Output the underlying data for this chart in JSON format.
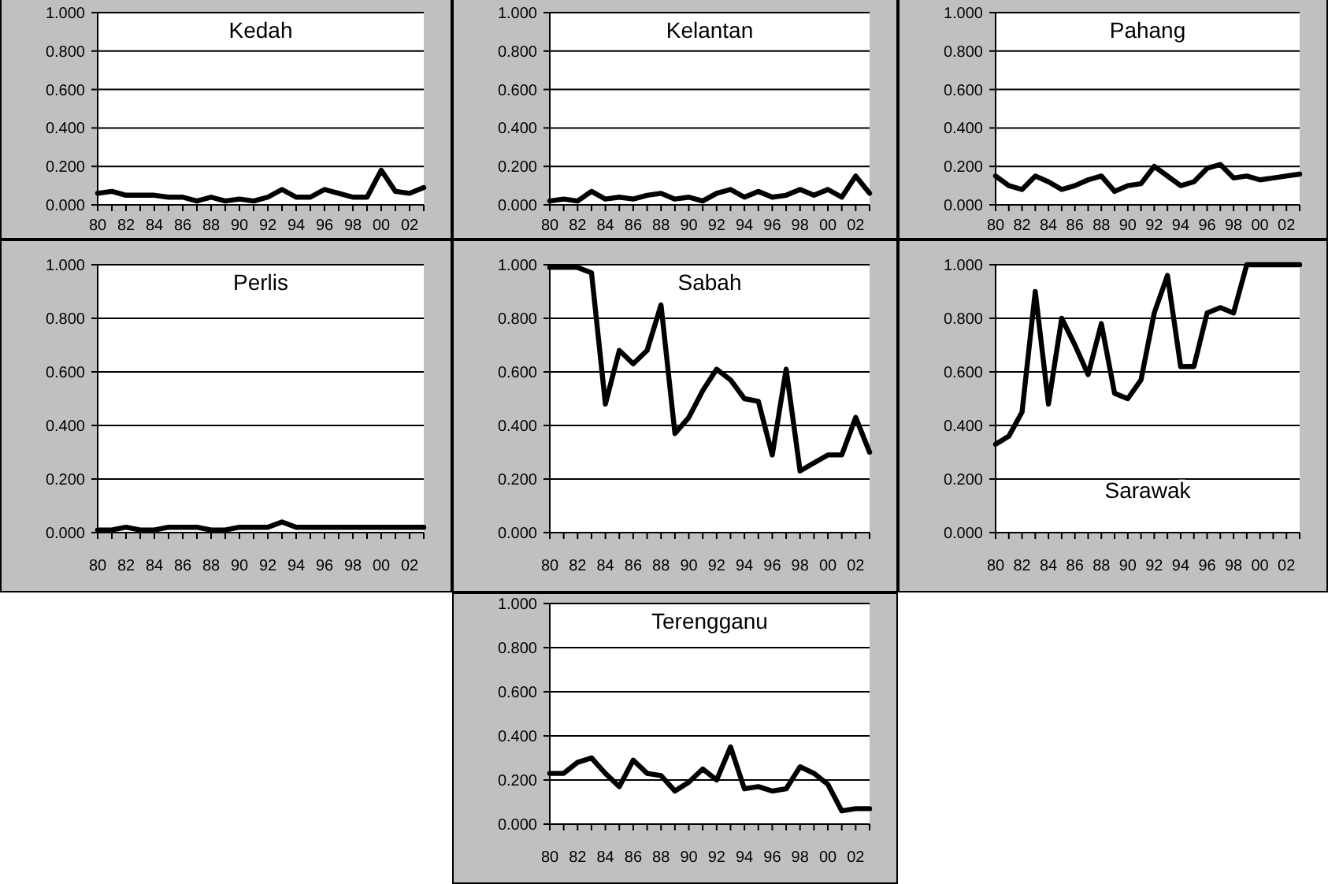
{
  "chart_data": [
    {
      "type": "line",
      "title": "Kedah",
      "categories": [
        "80",
        null,
        "82",
        null,
        "84",
        null,
        "86",
        null,
        "88",
        null,
        "90",
        null,
        "92",
        null,
        "94",
        null,
        "96",
        null,
        "98",
        null,
        "00",
        null,
        "02",
        null
      ],
      "values": [
        0.06,
        0.07,
        0.05,
        0.05,
        0.05,
        0.04,
        0.04,
        0.02,
        0.04,
        0.02,
        0.03,
        0.02,
        0.04,
        0.08,
        0.04,
        0.04,
        0.08,
        0.06,
        0.04,
        0.04,
        0.18,
        0.07,
        0.06,
        0.09
      ],
      "color": "#000000",
      "ylim": [
        0,
        1
      ],
      "yticks": [
        {
          "value": 0,
          "label": "0.000"
        },
        {
          "value": 0.2,
          "label": "0.200"
        },
        {
          "value": 0.4,
          "label": "0.400"
        },
        {
          "value": 0.6,
          "label": "0.600"
        },
        {
          "value": 0.8,
          "label": "0.800"
        },
        {
          "value": 1,
          "label": "1.000"
        }
      ],
      "grid": "y"
    },
    {
      "type": "line",
      "title": "Kelantan",
      "categories": [
        "80",
        null,
        "82",
        null,
        "84",
        null,
        "86",
        null,
        "88",
        null,
        "90",
        null,
        "92",
        null,
        "94",
        null,
        "96",
        null,
        "98",
        null,
        "00",
        null,
        "02",
        null
      ],
      "values": [
        0.02,
        0.03,
        0.02,
        0.07,
        0.03,
        0.04,
        0.03,
        0.05,
        0.06,
        0.03,
        0.04,
        0.02,
        0.06,
        0.08,
        0.04,
        0.07,
        0.04,
        0.05,
        0.08,
        0.05,
        0.08,
        0.04,
        0.15,
        0.06
      ],
      "color": "#000000",
      "ylim": [
        0,
        1
      ],
      "yticks": [
        {
          "value": 0,
          "label": "0.000"
        },
        {
          "value": 0.2,
          "label": "0.200"
        },
        {
          "value": 0.4,
          "label": "0.400"
        },
        {
          "value": 0.6,
          "label": "0.600"
        },
        {
          "value": 0.8,
          "label": "0.800"
        },
        {
          "value": 1,
          "label": "1.000"
        }
      ],
      "grid": "y"
    },
    {
      "type": "line",
      "title": "Pahang",
      "categories": [
        "80",
        null,
        "82",
        null,
        "84",
        null,
        "86",
        null,
        "88",
        null,
        "90",
        null,
        "92",
        null,
        "94",
        null,
        "96",
        null,
        "98",
        null,
        "00",
        null,
        "02",
        null
      ],
      "values": [
        0.15,
        0.1,
        0.08,
        0.15,
        0.12,
        0.08,
        0.1,
        0.13,
        0.15,
        0.07,
        0.1,
        0.11,
        0.2,
        0.15,
        0.1,
        0.12,
        0.19,
        0.21,
        0.14,
        0.15,
        0.13,
        0.14,
        0.15,
        0.16
      ],
      "color": "#000000",
      "ylim": [
        0,
        1
      ],
      "yticks": [
        {
          "value": 0,
          "label": "0.000"
        },
        {
          "value": 0.2,
          "label": "0.200"
        },
        {
          "value": 0.4,
          "label": "0.400"
        },
        {
          "value": 0.6,
          "label": "0.600"
        },
        {
          "value": 0.8,
          "label": "0.800"
        },
        {
          "value": 1,
          "label": "1.000"
        }
      ],
      "grid": "y"
    },
    {
      "type": "line",
      "title": "Perlis",
      "categories": [
        "80",
        null,
        "82",
        null,
        "84",
        null,
        "86",
        null,
        "88",
        null,
        "90",
        null,
        "92",
        null,
        "94",
        null,
        "96",
        null,
        "98",
        null,
        "00",
        null,
        "02",
        null
      ],
      "values": [
        0.01,
        0.01,
        0.02,
        0.01,
        0.01,
        0.02,
        0.02,
        0.02,
        0.01,
        0.01,
        0.02,
        0.02,
        0.02,
        0.04,
        0.02,
        0.02,
        0.02,
        0.02,
        0.02,
        0.02,
        0.02,
        0.02,
        0.02,
        0.02
      ],
      "color": "#000000",
      "ylim": [
        0,
        1
      ],
      "yticks": [
        {
          "value": 0,
          "label": "0.000"
        },
        {
          "value": 0.2,
          "label": "0.200"
        },
        {
          "value": 0.4,
          "label": "0.400"
        },
        {
          "value": 0.6,
          "label": "0.600"
        },
        {
          "value": 0.8,
          "label": "0.800"
        },
        {
          "value": 1,
          "label": "1.000"
        }
      ],
      "grid": "y"
    },
    {
      "type": "line",
      "title": "Sabah",
      "categories": [
        "80",
        null,
        "82",
        null,
        "84",
        null,
        "86",
        null,
        "88",
        null,
        "90",
        null,
        "92",
        null,
        "94",
        null,
        "96",
        null,
        "98",
        null,
        "00",
        null,
        "02",
        null
      ],
      "values": [
        0.99,
        0.99,
        0.99,
        0.97,
        0.48,
        0.68,
        0.63,
        0.68,
        0.85,
        0.37,
        0.43,
        0.53,
        0.61,
        0.57,
        0.5,
        0.49,
        0.29,
        0.61,
        0.23,
        0.26,
        0.29,
        0.29,
        0.43,
        0.3
      ],
      "color": "#000000",
      "ylim": [
        0,
        1
      ],
      "yticks": [
        {
          "value": 0,
          "label": "0.000"
        },
        {
          "value": 0.2,
          "label": "0.200"
        },
        {
          "value": 0.4,
          "label": "0.400"
        },
        {
          "value": 0.6,
          "label": "0.600"
        },
        {
          "value": 0.8,
          "label": "0.800"
        },
        {
          "value": 1,
          "label": "1.000"
        }
      ],
      "grid": "y"
    },
    {
      "type": "line",
      "title": "Sarawak",
      "categories": [
        "80",
        null,
        "82",
        null,
        "84",
        null,
        "86",
        null,
        "88",
        null,
        "90",
        null,
        "92",
        null,
        "94",
        null,
        "96",
        null,
        "98",
        null,
        "00",
        null,
        "02",
        null
      ],
      "values": [
        0.33,
        0.36,
        0.45,
        0.9,
        0.48,
        0.8,
        0.7,
        0.59,
        0.78,
        0.52,
        0.5,
        0.57,
        0.82,
        0.96,
        0.62,
        0.62,
        0.82,
        0.84,
        0.82,
        1,
        1,
        1,
        1,
        1
      ],
      "color": "#000000",
      "ylim": [
        0,
        1
      ],
      "yticks": [
        {
          "value": 0,
          "label": "0.000"
        },
        {
          "value": 0.2,
          "label": "0.200"
        },
        {
          "value": 0.4,
          "label": "0.400"
        },
        {
          "value": 0.6,
          "label": "0.600"
        },
        {
          "value": 0.8,
          "label": "0.800"
        },
        {
          "value": 1,
          "label": "1.000"
        }
      ],
      "grid": "y"
    },
    {
      "type": "line",
      "title": "Terengganu",
      "categories": [
        "80",
        null,
        "82",
        null,
        "84",
        null,
        "86",
        null,
        "88",
        null,
        "90",
        null,
        "92",
        null,
        "94",
        null,
        "96",
        null,
        "98",
        null,
        "00",
        null,
        "02",
        null
      ],
      "values": [
        0.23,
        0.23,
        0.28,
        0.3,
        0.23,
        0.17,
        0.29,
        0.23,
        0.22,
        0.15,
        0.19,
        0.25,
        0.2,
        0.35,
        0.16,
        0.17,
        0.15,
        0.16,
        0.26,
        0.23,
        0.18,
        0.06,
        0.07,
        0.07
      ],
      "color": "#000000",
      "ylim": [
        0,
        1
      ],
      "yticks": [
        {
          "value": 0,
          "label": "0.000"
        },
        {
          "value": 0.2,
          "label": "0.200"
        },
        {
          "value": 0.4,
          "label": "0.400"
        },
        {
          "value": 0.6,
          "label": "0.600"
        },
        {
          "value": 0.8,
          "label": "0.800"
        },
        {
          "value": 1,
          "label": "1.000"
        }
      ],
      "grid": "y"
    }
  ]
}
